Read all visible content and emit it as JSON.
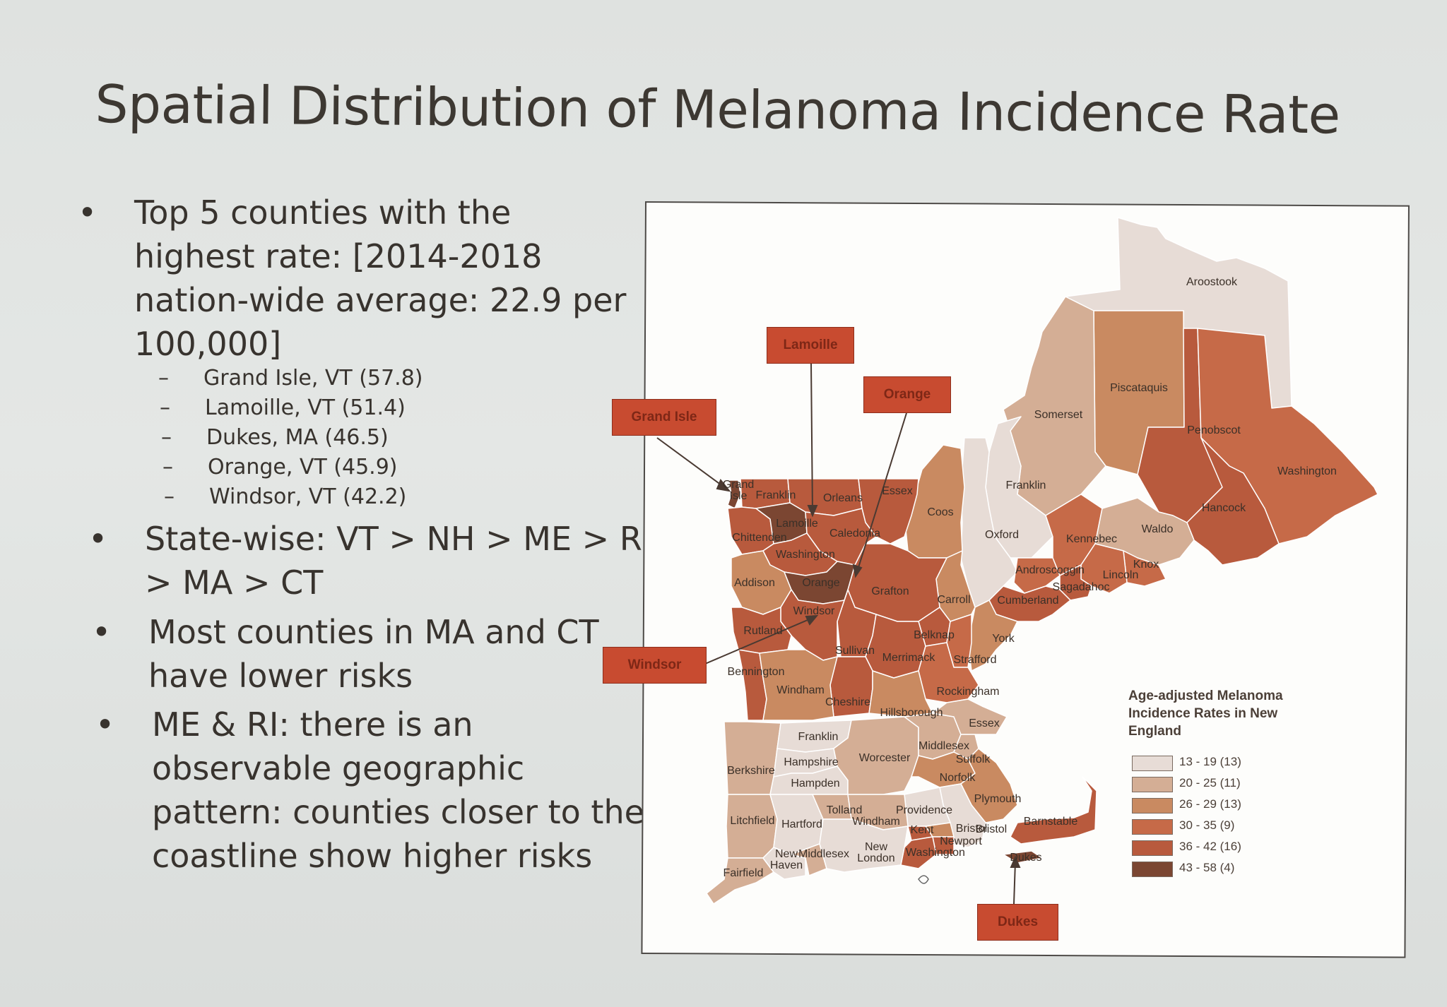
{
  "slide": {
    "title": "Spatial Distribution of Melanoma Incidence Rate",
    "bullets": {
      "b1_lines": [
        "Top 5 counties with the",
        "highest rate: [2014-2018",
        "nation-wide average: 22.9 per",
        "100,000]"
      ],
      "b1_sub": [
        "Grand Isle, VT (57.8)",
        "Lamoille, VT (51.4)",
        "Dukes, MA (46.5)",
        "Orange, VT (45.9)",
        "Windsor, VT (42.2)"
      ],
      "b2_lines": [
        "State-wise: VT > NH > ME > RI",
        "> MA > CT"
      ],
      "b3_lines": [
        "Most counties in MA and CT",
        "have lower risks"
      ],
      "b4_lines": [
        "ME & RI: there is an",
        "observable geographic",
        "pattern: counties closer to the",
        "coastline show higher risks"
      ],
      "bullet_glyph": "•",
      "dash_glyph": "–"
    }
  },
  "map": {
    "colors": {
      "c1": "#e7dcd6",
      "c2": "#d4ae95",
      "c3": "#c98a61",
      "c4": "#c66a48",
      "c5": "#b85a3d",
      "c6": "#7b4632",
      "border": "#ffffff",
      "callout_bg": "#c84b30"
    },
    "callouts": {
      "grand_isle": "Grand Isle",
      "lamoille": "Lamoille",
      "orange": "Orange",
      "windsor": "Windsor",
      "dukes": "Dukes"
    },
    "county_labels": {
      "aroostook": "Aroostook",
      "piscataquis": "Piscataquis",
      "somerset": "Somerset",
      "penobscot": "Penobscot",
      "washington_me": "Washington",
      "hancock": "Hancock",
      "franklin_me": "Franklin",
      "oxford": "Oxford",
      "kennebec": "Kennebec",
      "waldo": "Waldo",
      "knox": "Knox",
      "lincoln": "Lincoln",
      "androscoggin": "Androscoggin",
      "sagadahoc": "Sagadahoc",
      "cumberland": "Cumberland",
      "york": "York",
      "coos": "Coos",
      "carroll": "Carroll",
      "grafton": "Grafton",
      "belknap": "Belknap",
      "sullivan": "Sullivan",
      "merrimack": "Merrimack",
      "strafford": "Strafford",
      "rockingham": "Rockingham",
      "cheshire": "Cheshire",
      "hillsborough": "Hillsborough",
      "franklin_vt": "Franklin",
      "orleans": "Orleans",
      "essex_vt": "Essex",
      "grand_isle_lbl": "Grand\nIsle",
      "chittenden": "Chittenden",
      "lamoille_lbl": "Lamoille",
      "caledonia": "Caledonia",
      "washington_vt": "Washington",
      "addison": "Addison",
      "orange_lbl": "Orange",
      "windsor_lbl": "Windsor",
      "rutland": "Rutland",
      "bennington": "Bennington",
      "windham_vt": "Windham",
      "franklin_ma": "Franklin",
      "berkshire": "Berkshire",
      "hampshire": "Hampshire",
      "hampden": "Hampden",
      "worcester": "Worcester",
      "middlesex_ma": "Middlesex",
      "essex_ma": "Essex",
      "suffolk": "Suffolk",
      "norfolk": "Norfolk",
      "plymouth": "Plymouth",
      "bristol_ma": "Bristol",
      "barnstable": "Barnstable",
      "dukes_lbl": "Dukes",
      "litchfield": "Litchfield",
      "hartford": "Hartford",
      "tolland": "Tolland",
      "windham_ct": "Windham",
      "fairfield": "Fairfield",
      "new_haven": "New\nHaven",
      "middlesex_ct": "Middlesex",
      "new_london": "New\nLondon",
      "providence": "Providence",
      "kent": "Kent",
      "bristol_ri": "Bristol",
      "newport": "Newport",
      "washington_ri": "Washington"
    },
    "legend": {
      "title": "Age-adjusted Melanoma Incidence Rates in New England",
      "items": [
        {
          "label": "13 - 19 (13)",
          "color": "#e7dcd6"
        },
        {
          "label": "20 - 25 (11)",
          "color": "#d4ae95"
        },
        {
          "label": "26 - 29 (13)",
          "color": "#c98a61"
        },
        {
          "label": "30 - 35 (9)",
          "color": "#c66a48"
        },
        {
          "label": "36 - 42 (16)",
          "color": "#b85a3d"
        },
        {
          "label": "43 - 58 (4)",
          "color": "#7b4632"
        }
      ]
    }
  }
}
